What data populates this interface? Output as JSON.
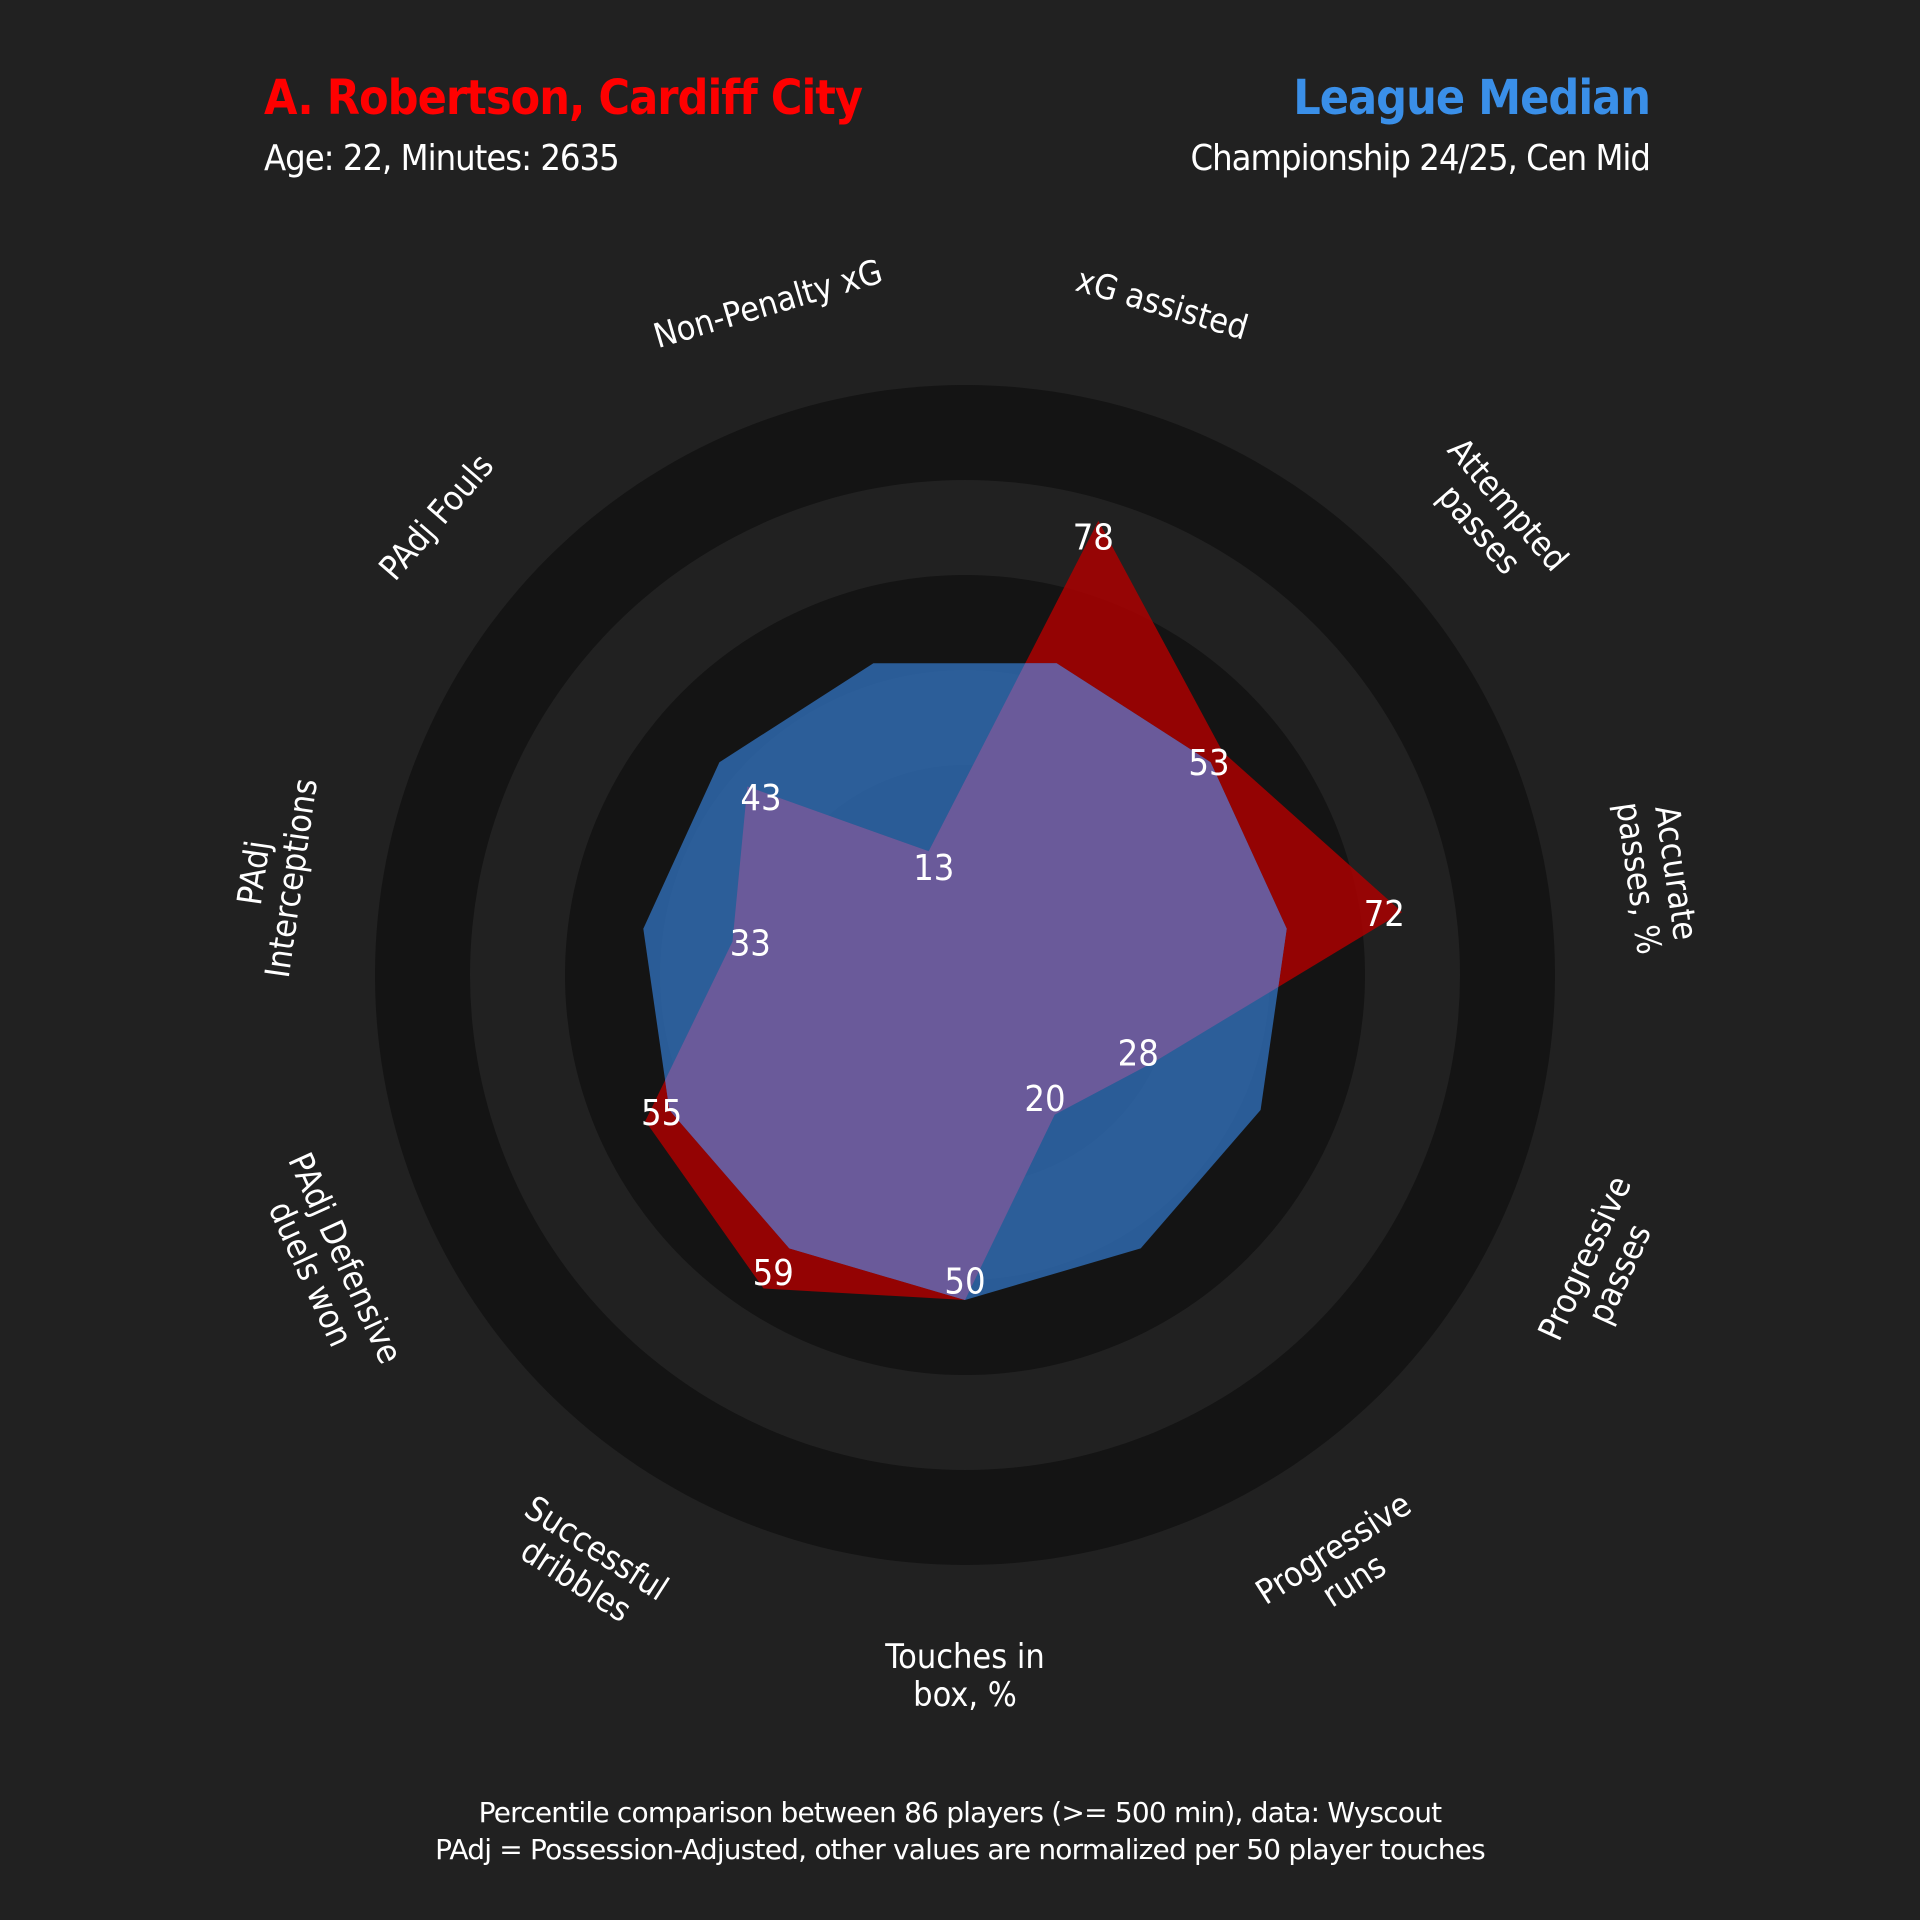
{
  "header": {
    "player_title": "A. Robertson, Cardiff City",
    "player_subtitle": "Age: 22, Minutes: 2635",
    "comparison_title": "League Median",
    "comparison_subtitle": "Championship 24/25, Cen Mid"
  },
  "footer": {
    "line1": "Percentile comparison between 86 players (>= 500 min), data: Wyscout",
    "line2": "PAdj = Possession-Adjusted, other values are normalized per 50 player touches"
  },
  "colors": {
    "background": "#212121",
    "ring_dark": "#141414",
    "ring_light": "#212121",
    "player": "#ff0000",
    "player_fill": "#aa0000",
    "median": "#3a8fe8",
    "median_fill": "#2f6eb8",
    "overlap": "#6a5a9a",
    "text": "#ffffff"
  },
  "chart_data": {
    "type": "radar",
    "categories": [
      "Non-Penalty xG",
      "xG assisted",
      "Attempted passes",
      "Accurate passes, %",
      "Progressive passes",
      "Progressive runs",
      "Touches in box, %",
      "Successful dribbles",
      "PAdj Defensive duels won",
      "PAdj Interceptions",
      "PAdj Fouls"
    ],
    "series": [
      {
        "name": "A. Robertson, Cardiff City",
        "values": [
          13,
          78,
          53,
          72,
          28,
          20,
          50,
          59,
          55,
          33,
          43
        ]
      },
      {
        "name": "League Median",
        "values": [
          50,
          50,
          50,
          50,
          50,
          50,
          50,
          50,
          50,
          50,
          50
        ]
      }
    ],
    "data_labels": [
      "13",
      "78",
      "53",
      "72",
      "28",
      "20",
      "50",
      "59",
      "55",
      "33",
      "43"
    ],
    "range": [
      0,
      100
    ],
    "grid": true
  }
}
